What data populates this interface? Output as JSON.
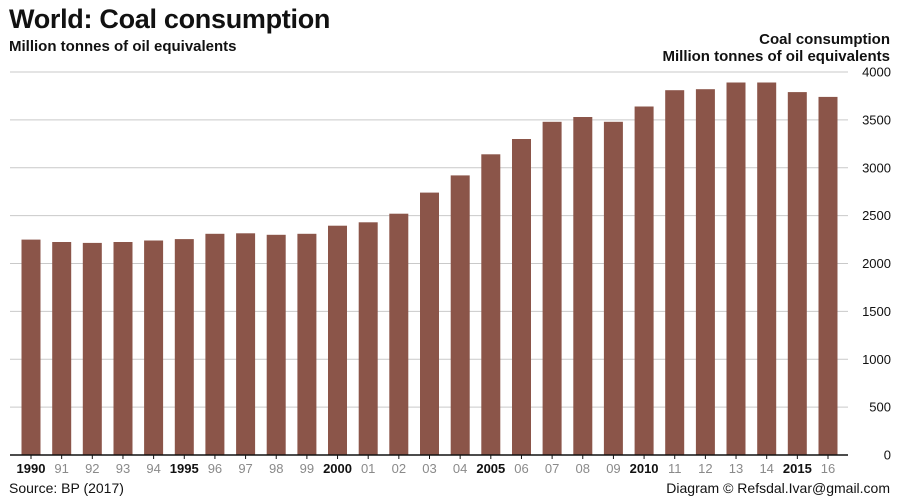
{
  "title": "World: Coal consumption",
  "subtitle": "Million tonnes of oil equivalents",
  "y_title_line1": "Coal consumption",
  "y_title_line2": "Million tonnes of oil equivalents",
  "source": "Source: BP (2017)",
  "credit": "Diagram © Refsdal.Ivar@gmail.com",
  "chart_data": {
    "type": "bar",
    "title": "World: Coal consumption",
    "subtitle": "Million tonnes of oil equivalents",
    "ylabel": "Coal consumption Million tonnes of oil equivalents",
    "ylim": [
      0,
      4000
    ],
    "yticks": [
      0,
      500,
      1000,
      1500,
      2000,
      2500,
      3000,
      3500,
      4000
    ],
    "grid": true,
    "bar_color": "#8b5549",
    "categories": [
      "1990",
      "91",
      "92",
      "93",
      "94",
      "1995",
      "96",
      "97",
      "98",
      "99",
      "2000",
      "01",
      "02",
      "03",
      "04",
      "2005",
      "06",
      "07",
      "08",
      "09",
      "2010",
      "11",
      "12",
      "13",
      "14",
      "2015",
      "16"
    ],
    "bold_categories": [
      "1990",
      "1995",
      "2000",
      "2005",
      "2010",
      "2015"
    ],
    "values": [
      2250,
      2225,
      2215,
      2225,
      2240,
      2255,
      2310,
      2315,
      2300,
      2310,
      2395,
      2430,
      2520,
      2740,
      2920,
      3140,
      3300,
      3480,
      3530,
      3480,
      3640,
      3810,
      3820,
      3890,
      3890,
      3790,
      3740
    ]
  }
}
